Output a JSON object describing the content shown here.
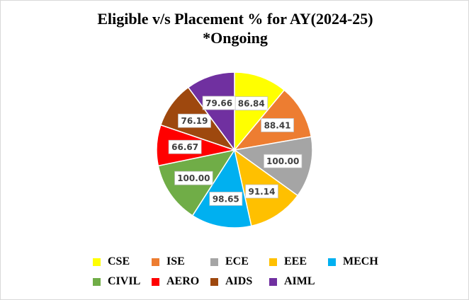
{
  "chart_data": {
    "type": "pie",
    "title": "Eligible v/s Placement % for AY(2024-25)",
    "subtitle": "*Ongoing",
    "categories": [
      "CSE",
      "ISE",
      "ECE",
      "EEE",
      "MECH",
      "CIVIL",
      "AERO",
      "AIDS",
      "AIML"
    ],
    "values": [
      86.84,
      88.41,
      100.0,
      91.14,
      98.65,
      100.0,
      66.67,
      76.19,
      79.66
    ],
    "data_labels": [
      "86.84",
      "88.41",
      "100.00",
      "91.14",
      "98.65",
      "100.00",
      "66.67",
      "76.19",
      "79.66"
    ],
    "colors": [
      "#FFFF00",
      "#ED7D31",
      "#A5A5A5",
      "#FFC000",
      "#00B0F0",
      "#70AD47",
      "#FF0000",
      "#9E480E",
      "#7030A0"
    ],
    "legend_position": "bottom"
  }
}
